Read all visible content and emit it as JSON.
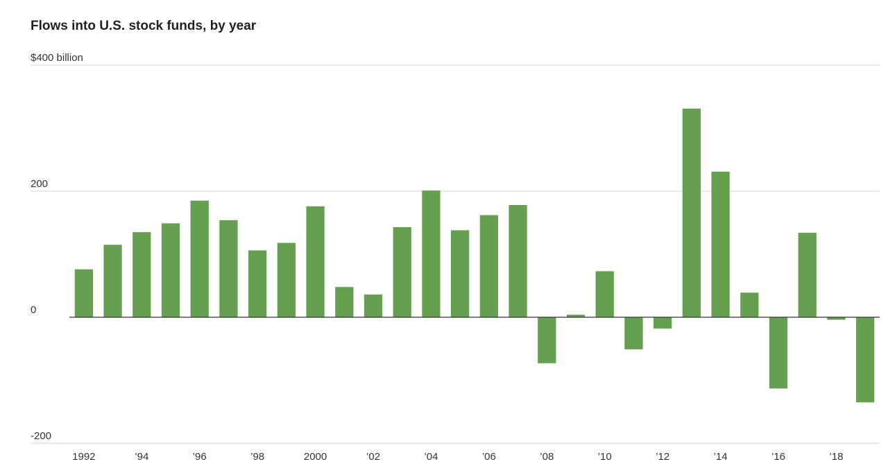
{
  "chart_data": {
    "type": "bar",
    "title": "Flows into U.S. stock funds, by year",
    "xlabel": "",
    "ylabel": "",
    "years": [
      1992,
      1993,
      1994,
      1995,
      1996,
      1997,
      1998,
      1999,
      2000,
      2001,
      2002,
      2003,
      2004,
      2005,
      2006,
      2007,
      2008,
      2009,
      2010,
      2011,
      2012,
      2013,
      2014,
      2015,
      2016,
      2017,
      2018,
      2019
    ],
    "values": [
      76,
      115,
      135,
      149,
      185,
      154,
      106,
      118,
      176,
      48,
      36,
      143,
      201,
      138,
      162,
      178,
      -73,
      4,
      73,
      -51,
      -18,
      331,
      231,
      39,
      -113,
      134,
      -4,
      -135
    ],
    "ylim": [
      -200,
      400
    ],
    "yticks": [
      {
        "value": 400,
        "label": "$400 billion"
      },
      {
        "value": 200,
        "label": "200"
      },
      {
        "value": 0,
        "label": "0"
      },
      {
        "value": -200,
        "label": "-200"
      }
    ],
    "xticks": [
      {
        "year": 1992,
        "label": "1992"
      },
      {
        "year": 1994,
        "label": "’94"
      },
      {
        "year": 1996,
        "label": "’96"
      },
      {
        "year": 1998,
        "label": "’98"
      },
      {
        "year": 2000,
        "label": "2000"
      },
      {
        "year": 2002,
        "label": "’02"
      },
      {
        "year": 2004,
        "label": "’04"
      },
      {
        "year": 2006,
        "label": "’06"
      },
      {
        "year": 2008,
        "label": "’08"
      },
      {
        "year": 2010,
        "label": "’10"
      },
      {
        "year": 2012,
        "label": "’12"
      },
      {
        "year": 2014,
        "label": "’14"
      },
      {
        "year": 2016,
        "label": "’16"
      },
      {
        "year": 2018,
        "label": "’18"
      }
    ],
    "bar_color": "#659f50",
    "grid": true
  }
}
